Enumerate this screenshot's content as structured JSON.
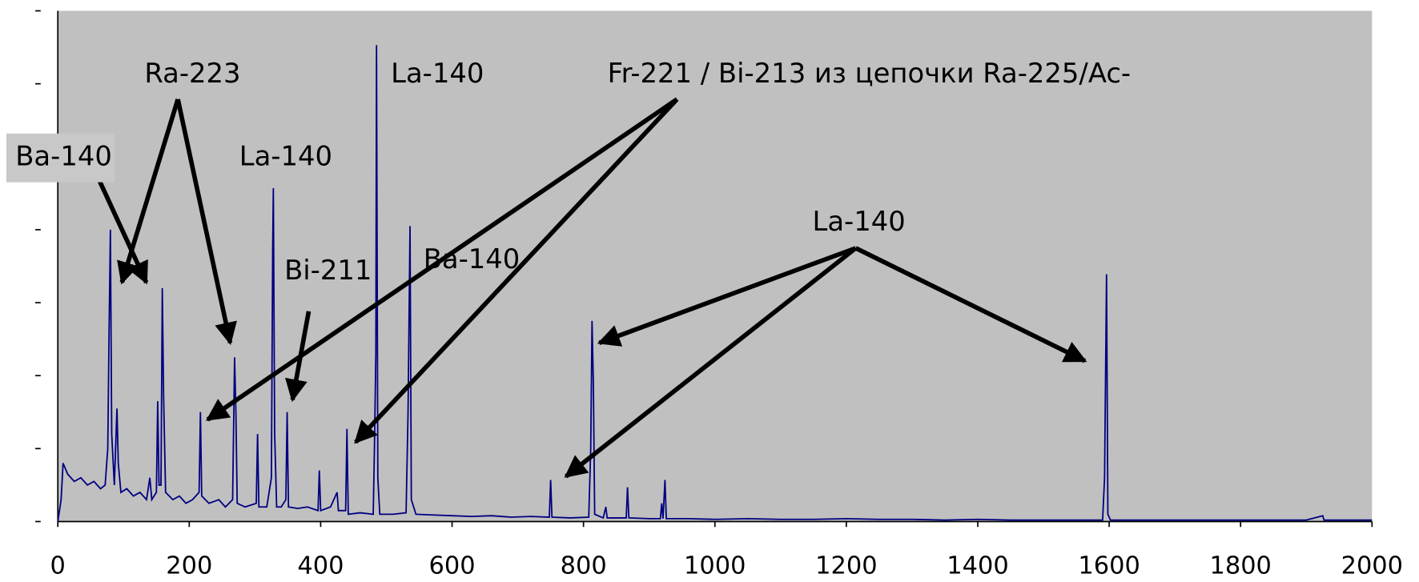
{
  "chart_data": {
    "type": "line",
    "x": [
      0,
      5,
      8,
      15,
      25,
      35,
      45,
      55,
      65,
      72,
      76,
      78,
      80,
      82,
      86,
      90,
      92,
      96,
      105,
      115,
      125,
      135,
      140,
      143,
      150,
      152,
      154,
      157,
      159,
      161,
      164,
      175,
      185,
      195,
      205,
      215,
      217,
      219,
      230,
      245,
      255,
      266,
      269,
      271,
      273,
      285,
      302,
      304,
      306,
      318,
      325,
      327,
      328,
      330,
      333,
      340,
      347,
      349,
      351,
      365,
      380,
      396,
      398,
      400,
      415,
      425,
      427,
      438,
      440,
      442,
      460,
      480,
      482,
      484,
      485,
      487,
      490,
      510,
      530,
      533,
      536,
      538,
      545,
      570,
      600,
      630,
      660,
      690,
      720,
      748,
      750,
      752,
      780,
      808,
      811,
      813,
      815,
      817,
      830,
      834,
      836,
      865,
      867,
      869,
      900,
      917,
      919,
      921,
      924,
      926,
      960,
      1000,
      1050,
      1100,
      1150,
      1200,
      1250,
      1300,
      1350,
      1400,
      1450,
      1500,
      1550,
      1590,
      1593,
      1596,
      1598,
      1602,
      1650,
      1700,
      1750,
      1800,
      1850,
      1900,
      1925,
      1927,
      1960,
      2000
    ],
    "series": [
      {
        "color": "#000080",
        "values": [
          0,
          0.3,
          0.8,
          0.65,
          0.55,
          0.6,
          0.5,
          0.55,
          0.45,
          0.5,
          1.0,
          2.6,
          4.0,
          1.2,
          0.5,
          1.55,
          0.8,
          0.4,
          0.45,
          0.35,
          0.4,
          0.3,
          0.6,
          0.3,
          0.4,
          1.65,
          0.5,
          0.5,
          3.2,
          1.7,
          0.4,
          0.3,
          0.35,
          0.25,
          0.3,
          0.4,
          1.5,
          0.35,
          0.25,
          0.3,
          0.2,
          0.3,
          2.25,
          1.5,
          0.25,
          0.2,
          0.25,
          1.2,
          0.2,
          0.2,
          0.6,
          3.75,
          4.57,
          1.2,
          0.2,
          0.2,
          0.3,
          1.5,
          0.2,
          0.18,
          0.2,
          0.15,
          0.7,
          0.15,
          0.2,
          0.4,
          0.15,
          0.15,
          1.27,
          0.1,
          0.12,
          0.1,
          1.1,
          2.3,
          6.53,
          0.6,
          0.1,
          0.1,
          0.12,
          1.5,
          4.05,
          0.3,
          0.1,
          0.09,
          0.08,
          0.07,
          0.08,
          0.06,
          0.07,
          0.06,
          0.57,
          0.06,
          0.05,
          0.06,
          1.0,
          2.75,
          1.9,
          0.1,
          0.05,
          0.2,
          0.05,
          0.05,
          0.47,
          0.05,
          0.04,
          0.04,
          0.25,
          0.04,
          0.57,
          0.04,
          0.04,
          0.03,
          0.04,
          0.03,
          0.03,
          0.04,
          0.03,
          0.03,
          0.02,
          0.03,
          0.02,
          0.02,
          0.02,
          0.02,
          0.6,
          3.39,
          0.1,
          0.02,
          0.02,
          0.02,
          0.02,
          0.02,
          0.02,
          0.02,
          0.08,
          0.02,
          0.02,
          0.02
        ]
      }
    ],
    "xlim": [
      0,
      2000
    ],
    "xticks": [
      0,
      200,
      400,
      600,
      800,
      1000,
      1200,
      1400,
      1600,
      1800,
      2000
    ],
    "ylim": [
      0,
      7
    ],
    "yticks": [
      0,
      1,
      2,
      3,
      4,
      5,
      6,
      7
    ],
    "ytick_labels_shown": false,
    "plot_background": "#c0c0c0",
    "annotations": [
      "Ba-140",
      "Ra-223",
      "La-140",
      "Bi-211",
      "La-140",
      "Ba-140",
      "La-140",
      "Fr-221 / Bi-213 из цепочки Ra-225/Ac-"
    ]
  }
}
